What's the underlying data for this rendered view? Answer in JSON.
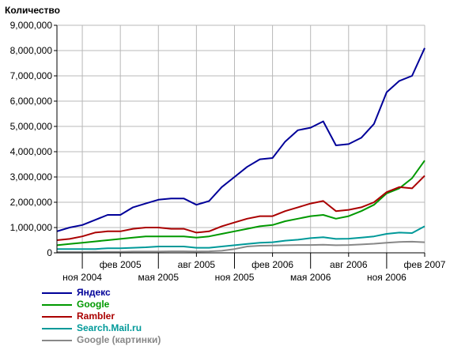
{
  "chart_data": {
    "type": "line",
    "ylabel": "Количество",
    "xlabel": "",
    "ylim": [
      0,
      9000000
    ],
    "y_ticks": [
      "0",
      "1,000,000",
      "2,000,000",
      "3,000,000",
      "4,000,000",
      "5,000,000",
      "6,000,000",
      "7,000,000",
      "8,000,000",
      "9,000,000"
    ],
    "x_ticks": [
      {
        "label": "ноя 2004",
        "month_index": 2,
        "row": "lower"
      },
      {
        "label": "фев 2005",
        "month_index": 5,
        "row": "upper"
      },
      {
        "label": "мая 2005",
        "month_index": 8,
        "row": "lower"
      },
      {
        "label": "авг 2005",
        "month_index": 11,
        "row": "upper"
      },
      {
        "label": "ноя 2005",
        "month_index": 14,
        "row": "lower"
      },
      {
        "label": "фев 2006",
        "month_index": 17,
        "row": "upper"
      },
      {
        "label": "мая 2006",
        "month_index": 20,
        "row": "lower"
      },
      {
        "label": "авг 2006",
        "month_index": 23,
        "row": "upper"
      },
      {
        "label": "ноя 2006",
        "month_index": 26,
        "row": "lower"
      },
      {
        "label": "фев 2007",
        "month_index": 29,
        "row": "upper"
      }
    ],
    "x_range": [
      0,
      29
    ],
    "grid": true,
    "legend_position": "bottom-left",
    "series": [
      {
        "name": "Яндекс",
        "color": "#000099",
        "x": [
          0,
          1,
          2,
          3,
          4,
          5,
          6,
          7,
          8,
          9,
          10,
          11,
          12,
          13,
          14,
          15,
          16,
          17,
          18,
          19,
          20,
          21,
          22,
          23,
          24,
          25,
          26,
          27,
          28,
          29
        ],
        "values": [
          850000,
          1000000,
          1100000,
          1300000,
          1500000,
          1500000,
          1800000,
          1950000,
          2100000,
          2150000,
          2150000,
          1900000,
          2050000,
          2600000,
          3000000,
          3400000,
          3700000,
          3750000,
          4400000,
          4850000,
          4950000,
          5200000,
          4250000,
          4300000,
          4550000,
          5100000,
          6350000,
          6800000,
          7000000,
          8100000
        ]
      },
      {
        "name": "Google",
        "color": "#009900",
        "x": [
          0,
          1,
          2,
          3,
          4,
          5,
          6,
          7,
          8,
          9,
          10,
          11,
          12,
          13,
          14,
          15,
          16,
          17,
          18,
          19,
          20,
          21,
          22,
          23,
          24,
          25,
          26,
          27,
          28,
          29
        ],
        "values": [
          300000,
          350000,
          400000,
          450000,
          500000,
          550000,
          600000,
          650000,
          650000,
          650000,
          650000,
          600000,
          650000,
          750000,
          850000,
          950000,
          1050000,
          1100000,
          1250000,
          1350000,
          1450000,
          1500000,
          1350000,
          1450000,
          1650000,
          1900000,
          2350000,
          2550000,
          2950000,
          3650000
        ]
      },
      {
        "name": "Rambler",
        "color": "#aa0000",
        "x": [
          0,
          1,
          2,
          3,
          4,
          5,
          6,
          7,
          8,
          9,
          10,
          11,
          12,
          13,
          14,
          15,
          16,
          17,
          18,
          19,
          20,
          21,
          22,
          23,
          24,
          25,
          26,
          27,
          28,
          29
        ],
        "values": [
          500000,
          550000,
          650000,
          800000,
          850000,
          850000,
          950000,
          1000000,
          1000000,
          950000,
          950000,
          800000,
          850000,
          1050000,
          1200000,
          1350000,
          1450000,
          1450000,
          1650000,
          1800000,
          1950000,
          2050000,
          1650000,
          1700000,
          1800000,
          2000000,
          2400000,
          2600000,
          2550000,
          3050000
        ]
      },
      {
        "name": "Search.Mail.ru",
        "color": "#009999",
        "x": [
          0,
          1,
          2,
          3,
          4,
          5,
          6,
          7,
          8,
          9,
          10,
          11,
          12,
          13,
          14,
          15,
          16,
          17,
          18,
          19,
          20,
          21,
          22,
          23,
          24,
          25,
          26,
          27,
          28,
          29
        ],
        "values": [
          150000,
          150000,
          150000,
          150000,
          180000,
          180000,
          200000,
          220000,
          250000,
          250000,
          250000,
          200000,
          200000,
          250000,
          300000,
          350000,
          400000,
          420000,
          480000,
          520000,
          580000,
          620000,
          550000,
          560000,
          600000,
          650000,
          750000,
          800000,
          780000,
          1050000
        ]
      },
      {
        "name": "Google (картинки)",
        "color": "#888888",
        "x": [
          0,
          1,
          2,
          3,
          4,
          5,
          6,
          7,
          8,
          9,
          10,
          11,
          12,
          13,
          14,
          15,
          16,
          17,
          18,
          19,
          20,
          21,
          22,
          23,
          24,
          25,
          26,
          27,
          28,
          29
        ],
        "values": [
          30000,
          30000,
          30000,
          40000,
          40000,
          40000,
          50000,
          50000,
          50000,
          60000,
          60000,
          50000,
          60000,
          80000,
          150000,
          250000,
          280000,
          290000,
          300000,
          310000,
          310000,
          320000,
          300000,
          310000,
          330000,
          360000,
          400000,
          430000,
          440000,
          420000
        ]
      }
    ]
  }
}
